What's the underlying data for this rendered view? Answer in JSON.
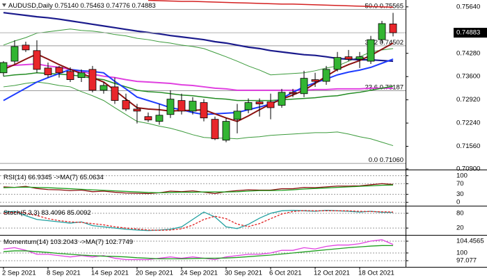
{
  "chart_data": [
    {
      "type": "candlestick",
      "title": "AUDUSD,Daily",
      "info_labels": [
        "0.75140",
        "0.75463",
        "0.74776",
        "0.74883"
      ],
      "categories": [
        "2 Sep 2021",
        null,
        null,
        null,
        "8 Sep 2021",
        null,
        null,
        null,
        "14 Sep 2021",
        null,
        null,
        null,
        "20 Sep 2021",
        null,
        null,
        null,
        "24 Sep 2021",
        null,
        null,
        null,
        "30 Sep 2021",
        null,
        null,
        null,
        "6 Oct 2021",
        null,
        null,
        null,
        "12 Oct 2021",
        null,
        null,
        null,
        "18 Oct 2021",
        null,
        null,
        null
      ],
      "open": [
        0.7371,
        0.7405,
        0.7452,
        0.7436,
        0.7385,
        0.7387,
        0.7375,
        0.7357,
        0.7381,
        0.732,
        0.733,
        0.729,
        0.7265,
        0.7243,
        0.7229,
        0.7249,
        0.729,
        0.7259,
        0.7284,
        0.7235,
        0.7174,
        0.7235,
        0.7263,
        0.7286,
        0.7286,
        0.7276,
        0.7314,
        0.731,
        0.7351,
        0.7346,
        0.7381,
        0.7418,
        0.7411,
        0.7405,
        0.7468,
        0.7514
      ],
      "high": [
        0.7405,
        0.7466,
        0.7462,
        0.7466,
        0.7401,
        0.7391,
        0.7387,
        0.7381,
        0.7391,
        0.7344,
        0.7357,
        0.731,
        0.728,
        0.7255,
        0.728,
        0.732,
        0.731,
        0.73,
        0.7294,
        0.7243,
        0.7239,
        0.728,
        0.7296,
        0.7296,
        0.731,
        0.7324,
        0.7324,
        0.7377,
        0.7371,
        0.7391,
        0.7432,
        0.7438,
        0.7432,
        0.7479,
        0.7523,
        0.75463
      ],
      "low": [
        0.7361,
        0.7397,
        0.7432,
        0.7371,
        0.7357,
        0.7357,
        0.7344,
        0.7344,
        0.7314,
        0.731,
        0.728,
        0.7259,
        0.7223,
        0.7227,
        0.7219,
        0.7239,
        0.7249,
        0.7249,
        0.7229,
        0.7174,
        0.7168,
        0.7194,
        0.7253,
        0.7243,
        0.7235,
        0.7269,
        0.73,
        0.73,
        0.733,
        0.7336,
        0.7375,
        0.7405,
        0.7385,
        0.7397,
        0.7458,
        0.74776
      ],
      "close": [
        0.7401,
        0.7448,
        0.7438,
        0.7381,
        0.7365,
        0.7371,
        0.7351,
        0.7371,
        0.732,
        0.7334,
        0.729,
        0.7265,
        0.7259,
        0.7233,
        0.7247,
        0.7294,
        0.7259,
        0.7288,
        0.7239,
        0.7178,
        0.7229,
        0.7259,
        0.7284,
        0.728,
        0.7269,
        0.7314,
        0.731,
        0.7355,
        0.7346,
        0.7381,
        0.7416,
        0.7411,
        0.7418,
        0.7468,
        0.7515,
        0.74883
      ],
      "up_color": "#33b533",
      "down_color": "#e8262b",
      "lines": [
        {
          "color": "#d42020",
          "values": [
            null,
            null,
            null,
            null,
            null,
            null,
            null,
            null,
            null,
            null,
            null,
            null,
            null,
            0.7583,
            0.7582,
            0.7581,
            0.758,
            0.758,
            0.7579,
            0.7578,
            0.7577,
            0.7576,
            0.7575,
            0.7574,
            0.7573,
            0.7572,
            0.7572,
            0.7571,
            0.757,
            0.7569,
            0.7568,
            0.7567,
            0.7566,
            0.7565,
            0.7564,
            0.7563
          ]
        },
        {
          "color": "#3a9a3a",
          "values": [
            0.7452,
            0.7464,
            0.7474,
            0.7487,
            0.7491,
            0.7495,
            0.7499,
            0.7495,
            0.7493,
            0.7489,
            0.7483,
            0.7479,
            0.7472,
            0.7468,
            0.7462,
            0.7458,
            0.7452,
            0.7448,
            0.7442,
            0.743,
            0.7418,
            0.7405,
            0.7391,
            0.7379,
            0.7365,
            0.7367,
            0.7369,
            0.7371,
            0.7377,
            0.7385,
            0.7391,
            0.7405,
            0.7418,
            0.7432,
            0.7438,
            0.7442
          ]
        },
        {
          "color": "#3a9a3a",
          "values": [
            0.733,
            0.7334,
            0.734,
            0.7344,
            0.734,
            0.7334,
            0.733,
            0.7316,
            0.7304,
            0.729,
            0.7269,
            0.7249,
            0.7229,
            0.7223,
            0.7215,
            0.7209,
            0.72,
            0.719,
            0.7182,
            0.718,
            0.718,
            0.7178,
            0.7182,
            0.7184,
            0.7188,
            0.719,
            0.7192,
            0.7194,
            0.7196,
            0.7196,
            0.7198,
            0.7192,
            0.7184,
            0.7178,
            0.7168,
            0.7158
          ]
        },
        {
          "color": "#1a1a8c",
          "values": [
            0.7547,
            0.7543,
            0.7539,
            0.7535,
            0.7532,
            0.7528,
            0.7523,
            0.7518,
            0.7513,
            0.7508,
            0.7503,
            0.7498,
            0.7493,
            0.7489,
            0.7485,
            0.748,
            0.7476,
            0.7472,
            0.7468,
            0.7462,
            0.7458,
            0.7452,
            0.7446,
            0.7442,
            0.7436,
            0.7432,
            0.7428,
            0.7424,
            0.7422,
            0.7418,
            0.7413,
            0.7411,
            0.7409,
            0.7409,
            0.7407,
            0.7405
          ]
        },
        {
          "color": "#e040e0",
          "values": [
            0.7391,
            0.7393,
            0.7395,
            0.7397,
            0.7391,
            0.7387,
            0.7381,
            0.7375,
            0.7367,
            0.7361,
            0.7357,
            0.7351,
            0.7346,
            0.7344,
            0.7342,
            0.734,
            0.7336,
            0.7334,
            0.733,
            0.7326,
            0.7324,
            0.732,
            0.732,
            0.732,
            0.732,
            0.732,
            0.732,
            0.732,
            0.7322,
            0.7322,
            0.7324,
            0.7324,
            0.7324,
            0.7326,
            0.7326,
            0.7326
          ]
        },
        {
          "color": "#228b22",
          "values": [
            0.7361,
            0.7365,
            0.7367,
            0.7371,
            0.7369,
            0.7367,
            0.7365,
            0.7361,
            0.7355,
            0.7351,
            0.734,
            0.733,
            0.732,
            0.7316,
            0.7314,
            0.731,
            0.7306,
            0.7304,
            0.73,
            0.7296,
            0.7294,
            0.729,
            0.729,
            0.729,
            0.729,
            0.7292,
            0.7294,
            0.7296,
            0.7298,
            0.7302,
            0.7304,
            0.731,
            0.7314,
            0.732,
            0.7326,
            0.7332
          ]
        },
        {
          "color": "#1e3cff",
          "values": [
            0.729,
            0.7308,
            0.7326,
            0.7344,
            0.7357,
            0.7369,
            0.7381,
            0.7377,
            0.7375,
            0.7371,
            0.7346,
            0.7324,
            0.73,
            0.729,
            0.728,
            0.7269,
            0.7263,
            0.7255,
            0.7249,
            0.7251,
            0.7253,
            0.7255,
            0.7263,
            0.7271,
            0.728,
            0.7296,
            0.7314,
            0.733,
            0.7342,
            0.7353,
            0.7365,
            0.7373,
            0.7379,
            0.7387,
            0.7399,
            0.7411
          ]
        },
        {
          "color": "#8b1010",
          "values": [
            0.7381,
            0.7395,
            0.7411,
            0.7426,
            0.7411,
            0.7395,
            0.7381,
            0.7369,
            0.7357,
            0.7344,
            0.732,
            0.7294,
            0.7269,
            0.7265,
            0.7263,
            0.7259,
            0.7261,
            0.7261,
            0.7263,
            0.7251,
            0.7239,
            0.7229,
            0.7245,
            0.7263,
            0.728,
            0.7294,
            0.7306,
            0.732,
            0.734,
            0.7361,
            0.7381,
            0.7395,
            0.7407,
            0.7422,
            0.744,
            0.7458
          ]
        }
      ],
      "fib": {
        "levels": [
          "50.0",
          "38.2",
          "23.6",
          "0.0"
        ],
        "values": [
          0.75565,
          0.74502,
          0.73187,
          0.7106
        ],
        "value_labels": [
          "0.75565",
          "0.74502",
          "0.73187",
          "0.71060"
        ]
      },
      "ylim": [
        0.709,
        0.7584
      ],
      "yticks": [
        {
          "value": 0.7564,
          "label": "0.75640"
        },
        {
          "value": 0.7428,
          "label": "0.74280"
        },
        {
          "value": 0.736,
          "label": "0.73600"
        },
        {
          "value": 0.7292,
          "label": "0.72920"
        },
        {
          "value": 0.7224,
          "label": "0.72240"
        },
        {
          "value": 0.7156,
          "label": "0.71560"
        },
        {
          "value": 0.709,
          "label": "0.70900"
        }
      ]
    },
    {
      "type": "line",
      "grid": true,
      "ylim": [
        -10,
        115
      ],
      "yticks": [
        100,
        70,
        30,
        0
      ],
      "series": [
        {
          "name": "RSI(14)",
          "color": "#8b1010",
          "values": [
            58,
            56,
            60,
            52,
            48,
            47,
            44,
            46,
            40,
            42,
            38,
            35,
            34,
            33,
            36,
            42,
            40,
            43,
            38,
            33,
            40,
            44,
            47,
            46,
            46,
            51,
            51,
            56,
            55,
            58,
            61,
            61,
            62,
            66,
            70,
            66.9345
          ]
        },
        {
          "name": "->MA(7)",
          "color": "#1e9e1e",
          "values": [
            55,
            56,
            57,
            56,
            55,
            53,
            51,
            49,
            47,
            45,
            43,
            41,
            39,
            37,
            36,
            37,
            38,
            38,
            39,
            39,
            39,
            40,
            42,
            44,
            44,
            45,
            47,
            50,
            52,
            54,
            56,
            58,
            60,
            62,
            64,
            65.0634
          ]
        }
      ]
    },
    {
      "type": "line",
      "grid": true,
      "ylim": [
        -5,
        105
      ],
      "yticks": [
        80,
        20
      ],
      "series": [
        {
          "name": "Stoch(5,3,3)",
          "color": "#20a0a0",
          "values": [
            85,
            88,
            70,
            55,
            50,
            45,
            40,
            45,
            30,
            25,
            20,
            15,
            12,
            10,
            12,
            15,
            25,
            55,
            85,
            65,
            25,
            18,
            35,
            60,
            80,
            90,
            92,
            90,
            88,
            92,
            90,
            88,
            85,
            88,
            84,
            83.4096
          ]
        },
        {
          "color": "#e02020",
          "dash": true,
          "values": [
            80,
            84,
            81,
            71,
            58,
            50,
            45,
            43,
            38,
            33,
            25,
            20,
            16,
            12,
            11,
            12,
            17,
            32,
            55,
            68,
            58,
            36,
            26,
            38,
            58,
            77,
            87,
            91,
            90,
            90,
            90,
            90,
            88,
            87,
            86,
            85.0092
          ]
        }
      ]
    },
    {
      "type": "line",
      "grid": true,
      "ylim": [
        95,
        106.3
      ],
      "yticks": [
        104.4565,
        100,
        97.077
      ],
      "series": [
        {
          "name": "Momentum(14)",
          "color": "#e040e0",
          "values": [
            101.5,
            102,
            101,
            99.5,
            99.5,
            99,
            98.5,
            99,
            98.5,
            99,
            98,
            97.5,
            97.5,
            97.5,
            98,
            98.5,
            98,
            98.5,
            98,
            97.5,
            98.5,
            99,
            99.5,
            99.5,
            100,
            101,
            101,
            102,
            101.5,
            102.5,
            103,
            103,
            103.5,
            104.5,
            105,
            103.2043
          ]
        },
        {
          "name": "->MA(7)",
          "color": "#1e9e1e",
          "values": [
            100.5,
            100.8,
            100.8,
            100.5,
            100.2,
            99.8,
            99.5,
            99.2,
            99,
            98.8,
            98.7,
            98.5,
            98.2,
            98,
            97.8,
            97.8,
            97.8,
            97.9,
            98,
            98,
            98.1,
            98.3,
            98.6,
            98.9,
            99.2,
            99.6,
            100,
            100.4,
            100.8,
            101.2,
            101.6,
            102,
            102.3,
            102.6,
            102.8,
            102.7749
          ]
        }
      ]
    }
  ]
}
